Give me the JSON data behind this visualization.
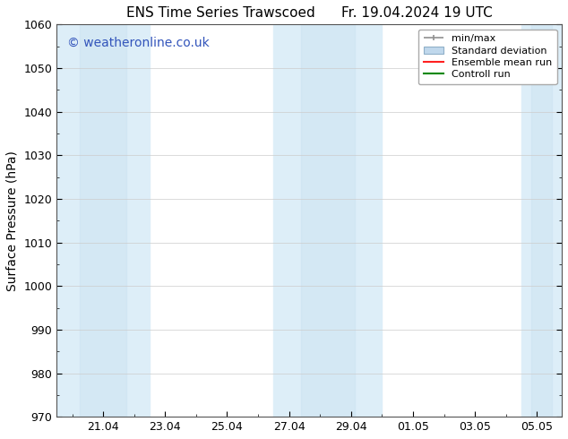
{
  "title_left": "ENS Time Series Trawscoed",
  "title_right": "Fr. 19.04.2024 19 UTC",
  "ylabel": "Surface Pressure (hPa)",
  "ylim": [
    970,
    1060
  ],
  "yticks": [
    970,
    980,
    990,
    1000,
    1010,
    1020,
    1030,
    1040,
    1050,
    1060
  ],
  "x_tick_labels": [
    "21.04",
    "23.04",
    "25.04",
    "27.04",
    "29.04",
    "01.05",
    "03.05",
    "05.05"
  ],
  "x_tick_positions": [
    21,
    23,
    25,
    27,
    29,
    31,
    33,
    35
  ],
  "xlim_start": 19.5,
  "xlim_end": 35.8,
  "shaded_bands": [
    {
      "x_start": 19.5,
      "x_end": 22.5
    },
    {
      "x_start": 26.5,
      "x_end": 30.0
    },
    {
      "x_start": 34.5,
      "x_end": 35.8
    }
  ],
  "band_color_outer": "#ddeef8",
  "band_color_inner": "#c8dff0",
  "background_color": "#ffffff",
  "watermark_text": "© weatheronline.co.uk",
  "watermark_color": "#3355bb",
  "legend_entries": [
    {
      "label": "min/max"
    },
    {
      "label": "Standard deviation"
    },
    {
      "label": "Ensemble mean run"
    },
    {
      "label": "Controll run"
    }
  ],
  "minmax_color": "#909090",
  "std_facecolor": "#c0d8ec",
  "std_edgecolor": "#8fafc8",
  "ensemble_color": "#ff2020",
  "control_color": "#008800",
  "title_fontsize": 11,
  "axis_label_fontsize": 10,
  "tick_fontsize": 9,
  "legend_fontsize": 8,
  "watermark_fontsize": 10
}
